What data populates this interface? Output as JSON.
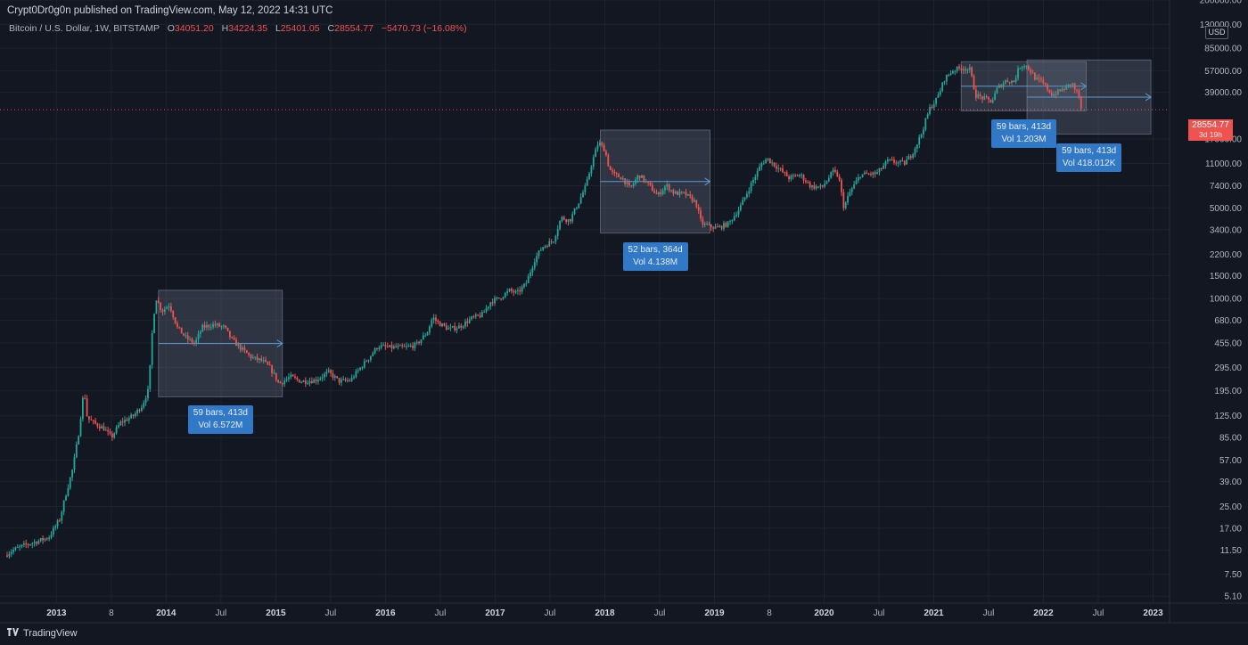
{
  "header": {
    "published": "Crypt0Dr0g0n published on TradingView.com, May 12, 2022 14:31 UTC"
  },
  "legend": {
    "symbol": "Bitcoin / U.S. Dollar, 1W, BITSTAMP",
    "o_label": "O",
    "open": "34051.20",
    "h_label": "H",
    "high": "34224.35",
    "l_label": "L",
    "low": "25401.05",
    "c_label": "C",
    "close": "28554.77",
    "change": "−5470.73 (−16.08%)"
  },
  "price_axis": {
    "currency": "USD",
    "last_price": "28554.77",
    "last_price_sub": "3d 19h"
  },
  "footer": {
    "brand": "TradingView"
  },
  "colors": {
    "background": "#131722",
    "up": "#26a69a",
    "down": "#ef5350",
    "box": "#5d6a82",
    "label": "#3179c7"
  },
  "chart_data": {
    "type": "candlestick",
    "title": "Bitcoin / U.S. Dollar, 1W, BITSTAMP",
    "scale": "log",
    "xlim": [
      2012.55,
      2023.15
    ],
    "ylim": [
      4.5,
      200000
    ],
    "y_ticks": [
      5.1,
      7.5,
      11.5,
      17.0,
      25.0,
      39.0,
      57.0,
      85.0,
      125.0,
      195.0,
      295.0,
      455.0,
      680.0,
      1000.0,
      1500.0,
      2200.0,
      3400.0,
      5000.0,
      7400.0,
      11000.0,
      17000.0,
      39000.0,
      57000.0,
      85000.0,
      130000.0,
      200000.0
    ],
    "y_tick_labels": [
      "5.10",
      "7.50",
      "11.50",
      "17.00",
      "25.00",
      "39.00",
      "57.00",
      "85.00",
      "125.00",
      "195.00",
      "295.00",
      "455.00",
      "680.00",
      "1000.00",
      "1500.00",
      "2200.00",
      "3400.00",
      "5000.00",
      "7400.00",
      "11000.00",
      "17000.00",
      "39000.00",
      "57000.00",
      "85000.00",
      "130000.00",
      "200000.00"
    ],
    "x_ticks": [
      {
        "t": 2013.0,
        "label": "2013",
        "major": true
      },
      {
        "t": 2013.5,
        "label": "8",
        "major": false
      },
      {
        "t": 2014.0,
        "label": "2014",
        "major": true
      },
      {
        "t": 2014.5,
        "label": "Jul",
        "major": false
      },
      {
        "t": 2015.0,
        "label": "2015",
        "major": true
      },
      {
        "t": 2015.5,
        "label": "Jul",
        "major": false
      },
      {
        "t": 2016.0,
        "label": "2016",
        "major": true
      },
      {
        "t": 2016.5,
        "label": "Jul",
        "major": false
      },
      {
        "t": 2017.0,
        "label": "2017",
        "major": true
      },
      {
        "t": 2017.5,
        "label": "Jul",
        "major": false
      },
      {
        "t": 2018.0,
        "label": "2018",
        "major": true
      },
      {
        "t": 2018.5,
        "label": "Jul",
        "major": false
      },
      {
        "t": 2019.0,
        "label": "2019",
        "major": true
      },
      {
        "t": 2019.5,
        "label": "8",
        "major": false
      },
      {
        "t": 2020.0,
        "label": "2020",
        "major": true
      },
      {
        "t": 2020.5,
        "label": "Jul",
        "major": false
      },
      {
        "t": 2021.0,
        "label": "2021",
        "major": true
      },
      {
        "t": 2021.5,
        "label": "Jul",
        "major": false
      },
      {
        "t": 2022.0,
        "label": "2022",
        "major": true
      },
      {
        "t": 2022.5,
        "label": "Jul",
        "major": false
      },
      {
        "t": 2023.0,
        "label": "2023",
        "major": true
      }
    ],
    "price_path": [
      [
        2012.55,
        10.5
      ],
      [
        2012.62,
        11.5
      ],
      [
        2012.72,
        12.5
      ],
      [
        2012.85,
        13.5
      ],
      [
        2012.95,
        14.5
      ],
      [
        2013.05,
        20
      ],
      [
        2013.1,
        30
      ],
      [
        2013.17,
        50
      ],
      [
        2013.22,
        90
      ],
      [
        2013.27,
        200
      ],
      [
        2013.3,
        120
      ],
      [
        2013.36,
        110
      ],
      [
        2013.45,
        100
      ],
      [
        2013.52,
        85
      ],
      [
        2013.6,
        110
      ],
      [
        2013.72,
        125
      ],
      [
        2013.8,
        150
      ],
      [
        2013.86,
        200
      ],
      [
        2013.9,
        700
      ],
      [
        2013.93,
        1000
      ],
      [
        2013.98,
        800
      ],
      [
        2014.05,
        900
      ],
      [
        2014.12,
        600
      ],
      [
        2014.2,
        500
      ],
      [
        2014.28,
        450
      ],
      [
        2014.35,
        600
      ],
      [
        2014.45,
        630
      ],
      [
        2014.55,
        600
      ],
      [
        2014.62,
        480
      ],
      [
        2014.72,
        400
      ],
      [
        2014.8,
        350
      ],
      [
        2014.9,
        330
      ],
      [
        2014.97,
        290
      ],
      [
        2015.05,
        220
      ],
      [
        2015.15,
        250
      ],
      [
        2015.25,
        230
      ],
      [
        2015.38,
        235
      ],
      [
        2015.5,
        270
      ],
      [
        2015.6,
        230
      ],
      [
        2015.7,
        235
      ],
      [
        2015.8,
        300
      ],
      [
        2015.88,
        360
      ],
      [
        2015.95,
        430
      ],
      [
        2016.05,
        420
      ],
      [
        2016.2,
        420
      ],
      [
        2016.3,
        440
      ],
      [
        2016.4,
        550
      ],
      [
        2016.45,
        720
      ],
      [
        2016.5,
        650
      ],
      [
        2016.6,
        580
      ],
      [
        2016.7,
        610
      ],
      [
        2016.8,
        700
      ],
      [
        2016.9,
        750
      ],
      [
        2016.98,
        950
      ],
      [
        2017.05,
        1000
      ],
      [
        2017.15,
        1150
      ],
      [
        2017.22,
        1100
      ],
      [
        2017.3,
        1300
      ],
      [
        2017.38,
        2000
      ],
      [
        2017.45,
        2500
      ],
      [
        2017.55,
        2800
      ],
      [
        2017.62,
        4200
      ],
      [
        2017.7,
        4000
      ],
      [
        2017.78,
        5500
      ],
      [
        2017.85,
        7500
      ],
      [
        2017.9,
        11000
      ],
      [
        2017.96,
        16000
      ],
      [
        2018.02,
        14000
      ],
      [
        2018.06,
        10000
      ],
      [
        2018.1,
        9000
      ],
      [
        2018.18,
        8500
      ],
      [
        2018.25,
        7000
      ],
      [
        2018.33,
        9000
      ],
      [
        2018.42,
        7500
      ],
      [
        2018.5,
        6200
      ],
      [
        2018.58,
        7500
      ],
      [
        2018.65,
        6500
      ],
      [
        2018.75,
        6400
      ],
      [
        2018.85,
        5500
      ],
      [
        2018.9,
        3800
      ],
      [
        2018.97,
        3600
      ],
      [
        2019.05,
        3500
      ],
      [
        2019.15,
        3800
      ],
      [
        2019.25,
        5000
      ],
      [
        2019.35,
        7500
      ],
      [
        2019.45,
        11000
      ],
      [
        2019.5,
        12000
      ],
      [
        2019.58,
        10500
      ],
      [
        2019.7,
        8500
      ],
      [
        2019.8,
        9000
      ],
      [
        2019.9,
        7300
      ],
      [
        2020.0,
        7200
      ],
      [
        2020.1,
        9500
      ],
      [
        2020.15,
        8800
      ],
      [
        2020.2,
        5000
      ],
      [
        2020.25,
        6500
      ],
      [
        2020.35,
        9000
      ],
      [
        2020.5,
        9200
      ],
      [
        2020.6,
        11500
      ],
      [
        2020.75,
        11000
      ],
      [
        2020.82,
        13000
      ],
      [
        2020.9,
        18000
      ],
      [
        2020.98,
        29000
      ],
      [
        2021.05,
        35000
      ],
      [
        2021.12,
        50000
      ],
      [
        2021.2,
        58000
      ],
      [
        2021.28,
        60000
      ],
      [
        2021.35,
        58000
      ],
      [
        2021.4,
        37000
      ],
      [
        2021.47,
        35000
      ],
      [
        2021.55,
        33000
      ],
      [
        2021.6,
        42000
      ],
      [
        2021.68,
        48000
      ],
      [
        2021.75,
        47000
      ],
      [
        2021.8,
        61000
      ],
      [
        2021.85,
        64000
      ],
      [
        2021.9,
        57000
      ],
      [
        2021.95,
        49000
      ],
      [
        2022.0,
        47000
      ],
      [
        2022.05,
        42000
      ],
      [
        2022.1,
        37000
      ],
      [
        2022.15,
        39000
      ],
      [
        2022.22,
        42000
      ],
      [
        2022.28,
        46000
      ],
      [
        2022.31,
        40000
      ],
      [
        2022.34,
        38000
      ],
      [
        2022.36,
        28554.77
      ]
    ],
    "last_price": 28554.77,
    "measurements": [
      {
        "t0": 2013.93,
        "t1": 2015.06,
        "p0": 175,
        "p1": 1160,
        "bars": "59 bars, 413d",
        "vol": "Vol 6.572M"
      },
      {
        "t0": 2017.96,
        "t1": 2018.96,
        "p0": 3200,
        "p1": 19900,
        "bars": "52 bars, 364d",
        "vol": "Vol 4.138M"
      },
      {
        "t0": 2021.25,
        "t1": 2022.39,
        "p0": 28000,
        "p1": 67000,
        "bars": "59 bars, 413d",
        "vol": "Vol 1.203M"
      },
      {
        "t0": 2021.85,
        "t1": 2022.98,
        "p0": 18500,
        "p1": 69000,
        "bars": "59 bars, 413d",
        "vol": "Vol 418.012K"
      }
    ]
  }
}
